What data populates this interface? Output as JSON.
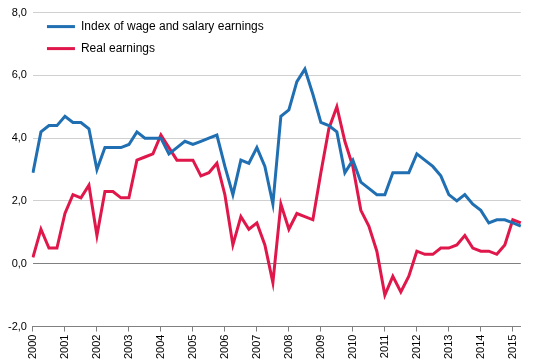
{
  "chart_data": {
    "type": "line",
    "categories": [
      "2000",
      null,
      null,
      null,
      "2001",
      null,
      null,
      null,
      "2002",
      null,
      null,
      null,
      "2003",
      null,
      null,
      null,
      "2004",
      null,
      null,
      null,
      "2005",
      null,
      null,
      null,
      "2006",
      null,
      null,
      null,
      "2007",
      null,
      null,
      null,
      "2008",
      null,
      null,
      null,
      "2009",
      null,
      null,
      null,
      "2010",
      null,
      null,
      null,
      "2011",
      null,
      null,
      null,
      "2012",
      null,
      null,
      null,
      "2013",
      null,
      null,
      null,
      "2014",
      null,
      null,
      null,
      "2015",
      null
    ],
    "series": [
      {
        "name": "Index of wage and salary earnings",
        "color": "#1f6fb2",
        "values": [
          2.9,
          4.2,
          4.4,
          4.4,
          4.7,
          4.5,
          4.5,
          4.3,
          3.0,
          3.7,
          3.7,
          3.7,
          3.8,
          4.2,
          4.0,
          4.0,
          4.0,
          3.5,
          3.7,
          3.9,
          3.8,
          3.9,
          4.0,
          4.1,
          3.1,
          2.2,
          3.3,
          3.2,
          3.7,
          3.1,
          1.9,
          4.7,
          4.9,
          5.8,
          6.2,
          5.4,
          4.5,
          4.4,
          4.2,
          2.9,
          3.3,
          2.6,
          2.4,
          2.2,
          2.2,
          2.9,
          2.9,
          2.9,
          3.5,
          3.3,
          3.1,
          2.8,
          2.2,
          2.0,
          2.2,
          1.9,
          1.7,
          1.3,
          1.4,
          1.4,
          1.3,
          1.2
        ]
      },
      {
        "name": "Real earnings",
        "color": "#e0174a",
        "values": [
          0.2,
          1.1,
          0.5,
          0.5,
          1.6,
          2.2,
          2.1,
          2.5,
          0.9,
          2.3,
          2.3,
          2.1,
          2.1,
          3.3,
          3.4,
          3.5,
          4.1,
          3.7,
          3.3,
          3.3,
          3.3,
          2.8,
          2.9,
          3.2,
          2.2,
          0.6,
          1.5,
          1.1,
          1.3,
          0.6,
          -0.6,
          1.9,
          1.1,
          1.6,
          1.5,
          1.4,
          2.9,
          4.3,
          5.0,
          3.9,
          3.1,
          1.7,
          1.2,
          0.4,
          -1.0,
          -0.4,
          -0.9,
          -0.4,
          0.4,
          0.3,
          0.3,
          0.5,
          0.5,
          0.6,
          0.9,
          0.5,
          0.4,
          0.4,
          0.3,
          0.6,
          1.4,
          1.3
        ]
      }
    ],
    "ylim": [
      -2,
      8
    ],
    "yticks": [
      {
        "value": -2,
        "label": "-2,0"
      },
      {
        "value": 0,
        "label": "0,0"
      },
      {
        "value": 2,
        "label": "2,0"
      },
      {
        "value": 4,
        "label": "4,0"
      },
      {
        "value": 6,
        "label": "6,0"
      },
      {
        "value": 8,
        "label": "8,0"
      }
    ],
    "grid": true,
    "legend": "upper left"
  }
}
